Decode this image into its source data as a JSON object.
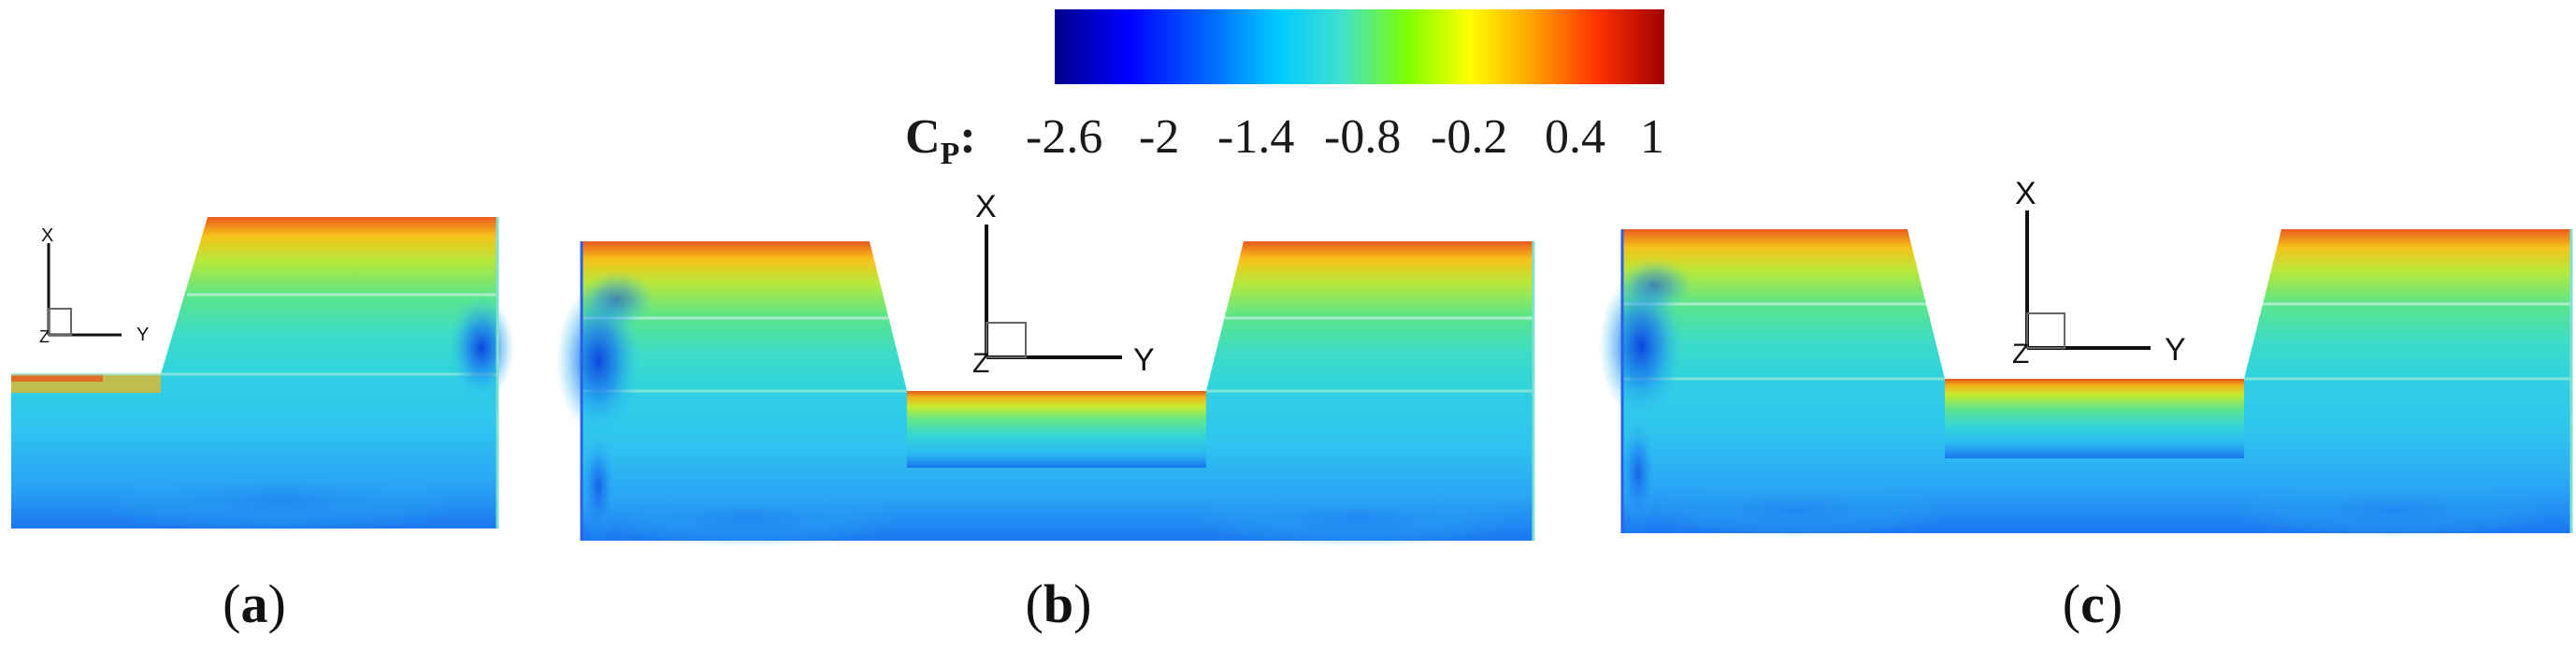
{
  "colorbar": {
    "symbol": "C",
    "subscript": "P",
    "suffix": ":",
    "ticks": [
      "-2.6",
      "-2",
      "-1.4",
      "-0.8",
      "-0.2",
      "0.4",
      "1"
    ],
    "colors": [
      "#00008b",
      "#0000ff",
      "#0066ff",
      "#00ccff",
      "#40e0d0",
      "#7fff00",
      "#ffff00",
      "#ffa500",
      "#ff3300",
      "#a00000"
    ]
  },
  "axes": {
    "x_label": "X",
    "y_label": "Y",
    "z_label": "Z"
  },
  "panels": [
    {
      "open": "(",
      "letter": "a",
      "close": ")"
    },
    {
      "open": "(",
      "letter": "b",
      "close": ")"
    },
    {
      "open": "(",
      "letter": "c",
      "close": ")"
    }
  ]
}
